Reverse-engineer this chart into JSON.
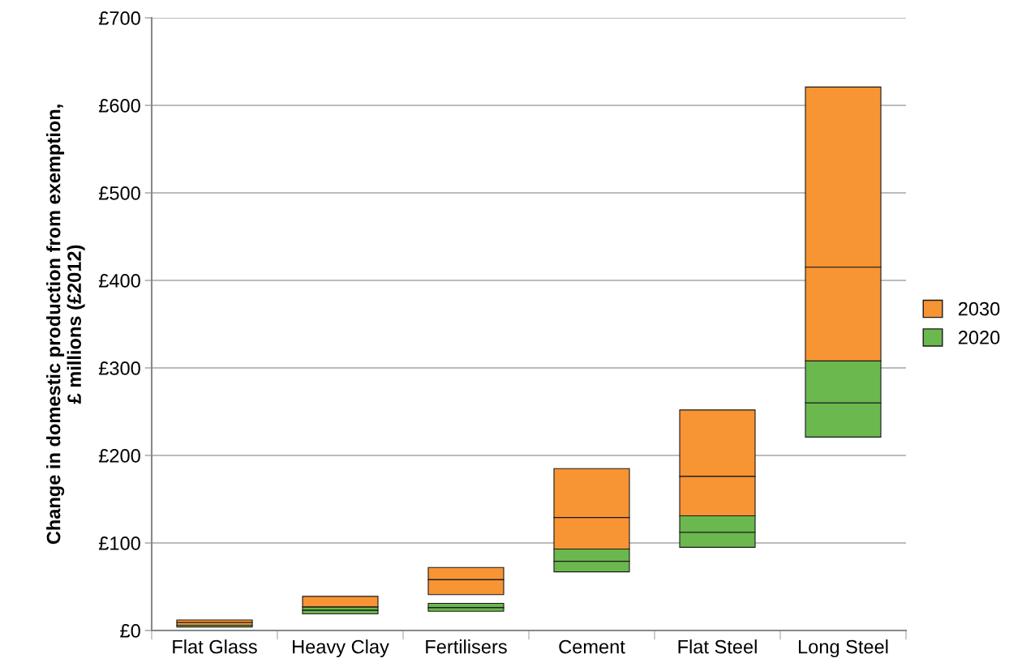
{
  "chart_data": {
    "type": "bar",
    "ylabel": "Change in domestic production from exemption,\n£ millions (£2012)",
    "categories": [
      "Flat Glass",
      "Heavy Clay",
      "Fertilisers",
      "Cement",
      "Flat Steel",
      "Long Steel"
    ],
    "series": [
      {
        "name": "2030",
        "color": "#f79433",
        "base": [
          9,
          null,
          58,
          129,
          176,
          415
        ],
        "values": [
          3,
          null,
          14,
          56,
          76,
          206
        ]
      },
      {
        "name": "2020",
        "color": "#6ab84e",
        "base": [
          null,
          23,
          26,
          79,
          112,
          260
        ],
        "values": [
          null,
          4,
          5,
          14,
          19,
          48
        ]
      },
      {
        "color": "#f79433",
        "base": [
          6,
          27,
          41,
          93,
          131,
          308
        ],
        "values": [
          3,
          12,
          17,
          36,
          45,
          107
        ]
      },
      {
        "color": "#6ab84e",
        "base": [
          4,
          19,
          22,
          67,
          95,
          221
        ],
        "values": [
          2,
          4,
          4,
          12,
          17,
          39
        ]
      }
    ],
    "ylim": [
      0,
      700
    ],
    "yticks": [
      {
        "value": 0,
        "label": "£0"
      },
      {
        "value": 100,
        "label": "£100"
      },
      {
        "value": 200,
        "label": "£200"
      },
      {
        "value": 300,
        "label": "£300"
      },
      {
        "value": 400,
        "label": "£400"
      },
      {
        "value": 500,
        "label": "£500"
      },
      {
        "value": 600,
        "label": "£600"
      },
      {
        "value": 700,
        "label": "£700"
      }
    ],
    "grid": "y",
    "legend": "right"
  }
}
